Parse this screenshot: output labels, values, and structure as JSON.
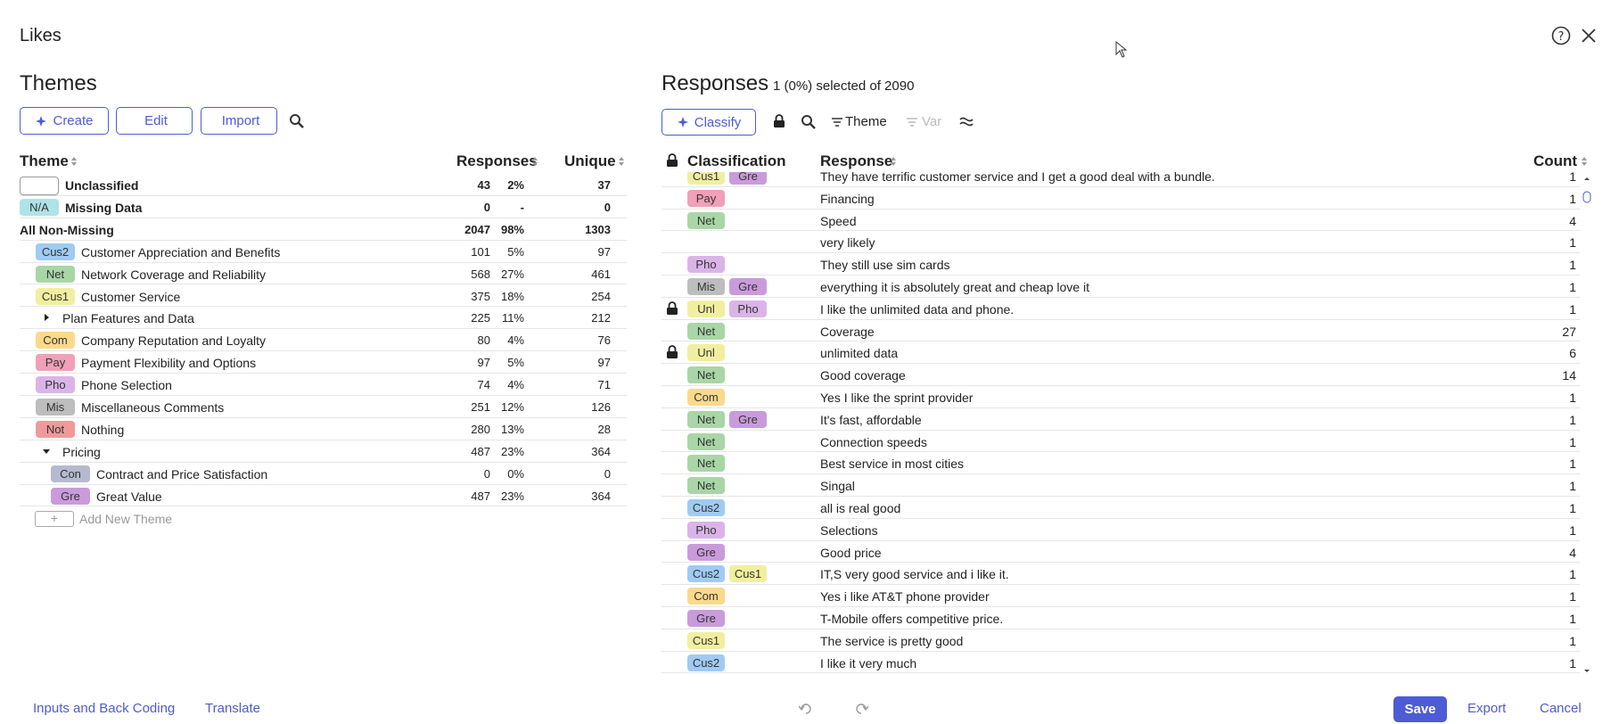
{
  "header": {
    "title": "Likes"
  },
  "tag_colors": {
    "N/A": "#aee3e8",
    "Cus2": "#9fcbf3",
    "Net": "#a9d6a6",
    "Cus1": "#f1ef9f",
    "Com": "#fbd98b",
    "Pay": "#f0a0b8",
    "Pho": "#dab4e8",
    "Mis": "#bdbdbd",
    "Not": "#ef9a9a",
    "Con": "#b6bacf",
    "Gre": "#c99bdb",
    "Unl": "#f1ef9f"
  },
  "themes": {
    "title": "Themes",
    "buttons": [
      "Create",
      "Edit",
      "Import"
    ],
    "columns": [
      "Theme",
      "Responses",
      "Unique"
    ],
    "rows": [
      {
        "empty_tag": true,
        "label": "Unclassified",
        "count": 43,
        "pct": "2%",
        "unique": 37,
        "bold": true,
        "level": 0
      },
      {
        "tag": "N/A",
        "label": "Missing Data",
        "count": 0,
        "pct": "-",
        "unique": 0,
        "bold": true,
        "level": 0
      },
      {
        "label": "All Non-Missing",
        "count": 2047,
        "pct": "98%",
        "unique": 1303,
        "bold": true,
        "level": 0
      },
      {
        "tag": "Cus2",
        "label": "Customer Appreciation and Benefits",
        "count": 101,
        "pct": "5%",
        "unique": 97,
        "level": 1
      },
      {
        "tag": "Net",
        "label": "Network Coverage and Reliability",
        "count": 568,
        "pct": "27%",
        "unique": 461,
        "level": 1
      },
      {
        "tag": "Cus1",
        "label": "Customer Service",
        "count": 375,
        "pct": "18%",
        "unique": 254,
        "level": 1
      },
      {
        "expander": "collapsed",
        "label": "Plan Features and Data",
        "count": 225,
        "pct": "11%",
        "unique": 212,
        "level": 1
      },
      {
        "tag": "Com",
        "label": "Company Reputation and Loyalty",
        "count": 80,
        "pct": "4%",
        "unique": 76,
        "level": 1
      },
      {
        "tag": "Pay",
        "label": "Payment Flexibility and Options",
        "count": 97,
        "pct": "5%",
        "unique": 97,
        "level": 1
      },
      {
        "tag": "Pho",
        "label": "Phone Selection",
        "count": 74,
        "pct": "4%",
        "unique": 71,
        "level": 1
      },
      {
        "tag": "Mis",
        "label": "Miscellaneous Comments",
        "count": 251,
        "pct": "12%",
        "unique": 126,
        "level": 1
      },
      {
        "tag": "Not",
        "label": "Nothing",
        "count": 280,
        "pct": "13%",
        "unique": 28,
        "level": 1
      },
      {
        "expander": "expanded",
        "label": "Pricing",
        "count": 487,
        "pct": "23%",
        "unique": 364,
        "level": 1
      },
      {
        "tag": "Con",
        "label": "Contract and Price Satisfaction",
        "count": 0,
        "pct": "0%",
        "unique": 0,
        "level": 2
      },
      {
        "tag": "Gre",
        "label": "Great Value",
        "count": 487,
        "pct": "23%",
        "unique": 364,
        "level": 2
      }
    ],
    "add_new": "Add New Theme"
  },
  "responses": {
    "title": "Responses",
    "subtitle": "1 (0%) selected of 2090",
    "toolbar": [
      "Classify",
      "Theme",
      "Var"
    ],
    "columns": [
      "Classification",
      "Response",
      "Count"
    ],
    "rows": [
      {
        "tags": [
          "Cus1",
          "Gre"
        ],
        "text": "They have terrific customer service and I get a good deal with a bundle.",
        "count": 1
      },
      {
        "tags": [
          "Pay"
        ],
        "text": "Financing",
        "count": 1
      },
      {
        "tags": [
          "Net"
        ],
        "text": "Speed",
        "count": 4
      },
      {
        "tags": [],
        "text": "very likely",
        "count": 1
      },
      {
        "tags": [
          "Pho"
        ],
        "text": "They still use sim cards",
        "count": 1
      },
      {
        "tags": [
          "Mis",
          "Gre"
        ],
        "text": "everything it is absolutely great and cheap love it",
        "count": 1
      },
      {
        "lock": true,
        "tags": [
          "Unl",
          "Pho"
        ],
        "text": "I like the unlimited data and phone.",
        "count": 1
      },
      {
        "tags": [
          "Net"
        ],
        "text": "Coverage",
        "count": 27
      },
      {
        "lock": true,
        "tags": [
          "Unl"
        ],
        "text": "unlimited data",
        "count": 6
      },
      {
        "tags": [
          "Net"
        ],
        "text": "Good coverage",
        "count": 14
      },
      {
        "tags": [
          "Com"
        ],
        "text": "Yes I like the sprint provider",
        "count": 1
      },
      {
        "tags": [
          "Net",
          "Gre"
        ],
        "text": "It's fast, affordable",
        "count": 1
      },
      {
        "tags": [
          "Net"
        ],
        "text": "Connection speeds",
        "count": 1
      },
      {
        "tags": [
          "Net"
        ],
        "text": "Best service in most cities",
        "count": 1
      },
      {
        "tags": [
          "Net"
        ],
        "text": "Singal",
        "count": 1
      },
      {
        "tags": [
          "Cus2"
        ],
        "text": "all is real good",
        "count": 1
      },
      {
        "tags": [
          "Pho"
        ],
        "text": "Selections",
        "count": 1
      },
      {
        "tags": [
          "Gre"
        ],
        "text": "Good price",
        "count": 4
      },
      {
        "tags": [
          "Cus2",
          "Cus1"
        ],
        "text": "IT,S very good service and i like it.",
        "count": 1
      },
      {
        "tags": [
          "Com"
        ],
        "text": "Yes i like AT&T phone provider",
        "count": 1
      },
      {
        "tags": [
          "Gre"
        ],
        "text": "T-Mobile offers competitive price.",
        "count": 1
      },
      {
        "tags": [
          "Cus1"
        ],
        "text": "The service is pretty good",
        "count": 1
      },
      {
        "tags": [
          "Cus2"
        ],
        "text": "I like it very much",
        "count": 1
      }
    ]
  },
  "footer": {
    "left": [
      "Inputs and Back Coding",
      "Translate"
    ],
    "right": [
      "Save",
      "Export",
      "Cancel"
    ]
  }
}
